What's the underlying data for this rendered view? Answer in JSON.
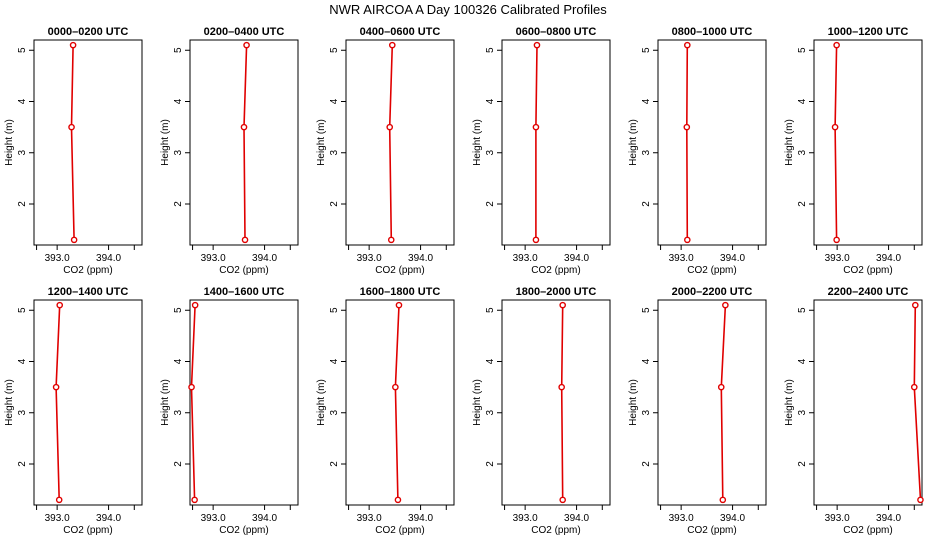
{
  "page": {
    "title": "NWR AIRCOA A  Day 100326  Calibrated Profiles"
  },
  "chart_data": [
    {
      "type": "line",
      "title": "0000–0200 UTC",
      "xlabel": "CO2 (ppm)",
      "ylabel": "Height (m)",
      "xlim": [
        392.55,
        394.65
      ],
      "ylim": [
        1.2,
        5.2
      ],
      "xticks": [
        393.0,
        394.0
      ],
      "xtick_labels": [
        "393.0",
        "394.0"
      ],
      "yticks": [
        2,
        3,
        4,
        5
      ],
      "color": "#e00000",
      "series": [
        {
          "x": [
            393.33,
            393.28,
            393.31
          ],
          "y": [
            1.3,
            3.5,
            5.1
          ]
        }
      ]
    },
    {
      "type": "line",
      "title": "0200–0400 UTC",
      "xlabel": "CO2 (ppm)",
      "ylabel": "Height (m)",
      "xlim": [
        392.55,
        394.65
      ],
      "ylim": [
        1.2,
        5.2
      ],
      "xticks": [
        393.0,
        394.0
      ],
      "xtick_labels": [
        "393.0",
        "394.0"
      ],
      "yticks": [
        2,
        3,
        4,
        5
      ],
      "color": "#e00000",
      "series": [
        {
          "x": [
            393.62,
            393.6,
            393.65
          ],
          "y": [
            1.3,
            3.5,
            5.1
          ]
        }
      ]
    },
    {
      "type": "line",
      "title": "0400–0600 UTC",
      "xlabel": "CO2 (ppm)",
      "ylabel": "Height (m)",
      "xlim": [
        392.55,
        394.65
      ],
      "ylim": [
        1.2,
        5.2
      ],
      "xticks": [
        393.0,
        394.0
      ],
      "xtick_labels": [
        "393.0",
        "394.0"
      ],
      "yticks": [
        2,
        3,
        4,
        5
      ],
      "color": "#e00000",
      "series": [
        {
          "x": [
            393.43,
            393.4,
            393.45
          ],
          "y": [
            1.3,
            3.5,
            5.1
          ]
        }
      ]
    },
    {
      "type": "line",
      "title": "0600–0800 UTC",
      "xlabel": "CO2 (ppm)",
      "ylabel": "Height (m)",
      "xlim": [
        392.55,
        394.65
      ],
      "ylim": [
        1.2,
        5.2
      ],
      "xticks": [
        393.0,
        394.0
      ],
      "xtick_labels": [
        "393.0",
        "394.0"
      ],
      "yticks": [
        2,
        3,
        4,
        5
      ],
      "color": "#e00000",
      "series": [
        {
          "x": [
            393.21,
            393.21,
            393.23
          ],
          "y": [
            1.3,
            3.5,
            5.1
          ]
        }
      ]
    },
    {
      "type": "line",
      "title": "0800–1000 UTC",
      "xlabel": "CO2 (ppm)",
      "ylabel": "Height (m)",
      "xlim": [
        392.55,
        394.65
      ],
      "ylim": [
        1.2,
        5.2
      ],
      "xticks": [
        393.0,
        394.0
      ],
      "xtick_labels": [
        "393.0",
        "394.0"
      ],
      "yticks": [
        2,
        3,
        4,
        5
      ],
      "color": "#e00000",
      "series": [
        {
          "x": [
            393.12,
            393.11,
            393.12
          ],
          "y": [
            1.3,
            3.5,
            5.1
          ]
        }
      ]
    },
    {
      "type": "line",
      "title": "1000–1200 UTC",
      "xlabel": "CO2 (ppm)",
      "ylabel": "Height (m)",
      "xlim": [
        392.55,
        394.65
      ],
      "ylim": [
        1.2,
        5.2
      ],
      "xticks": [
        393.0,
        394.0
      ],
      "xtick_labels": [
        "393.0",
        "394.0"
      ],
      "yticks": [
        2,
        3,
        4,
        5
      ],
      "color": "#e00000",
      "series": [
        {
          "x": [
            392.99,
            392.96,
            392.99
          ],
          "y": [
            1.3,
            3.5,
            5.1
          ]
        }
      ]
    },
    {
      "type": "line",
      "title": "1200–1400 UTC",
      "xlabel": "CO2 (ppm)",
      "ylabel": "Height (m)",
      "xlim": [
        392.55,
        394.65
      ],
      "ylim": [
        1.2,
        5.2
      ],
      "xticks": [
        393.0,
        394.0
      ],
      "xtick_labels": [
        "393.0",
        "394.0"
      ],
      "yticks": [
        2,
        3,
        4,
        5
      ],
      "color": "#e00000",
      "series": [
        {
          "x": [
            393.04,
            392.98,
            393.05
          ],
          "y": [
            1.3,
            3.5,
            5.1
          ]
        }
      ]
    },
    {
      "type": "line",
      "title": "1400–1600 UTC",
      "xlabel": "CO2 (ppm)",
      "ylabel": "Height (m)",
      "xlim": [
        392.55,
        394.65
      ],
      "ylim": [
        1.2,
        5.2
      ],
      "xticks": [
        393.0,
        394.0
      ],
      "xtick_labels": [
        "393.0",
        "394.0"
      ],
      "yticks": [
        2,
        3,
        4,
        5
      ],
      "color": "#e00000",
      "series": [
        {
          "x": [
            392.64,
            392.58,
            392.65
          ],
          "y": [
            1.3,
            3.5,
            5.1
          ]
        }
      ]
    },
    {
      "type": "line",
      "title": "1600–1800 UTC",
      "xlabel": "CO2 (ppm)",
      "ylabel": "Height (m)",
      "xlim": [
        392.55,
        394.65
      ],
      "ylim": [
        1.2,
        5.2
      ],
      "xticks": [
        393.0,
        394.0
      ],
      "xtick_labels": [
        "393.0",
        "394.0"
      ],
      "yticks": [
        2,
        3,
        4,
        5
      ],
      "color": "#e00000",
      "series": [
        {
          "x": [
            393.56,
            393.51,
            393.58
          ],
          "y": [
            1.3,
            3.5,
            5.1
          ]
        }
      ]
    },
    {
      "type": "line",
      "title": "1800–2000 UTC",
      "xlabel": "CO2 (ppm)",
      "ylabel": "Height (m)",
      "xlim": [
        392.55,
        394.65
      ],
      "ylim": [
        1.2,
        5.2
      ],
      "xticks": [
        393.0,
        394.0
      ],
      "xtick_labels": [
        "393.0",
        "394.0"
      ],
      "yticks": [
        2,
        3,
        4,
        5
      ],
      "color": "#e00000",
      "series": [
        {
          "x": [
            393.73,
            393.71,
            393.73
          ],
          "y": [
            1.3,
            3.5,
            5.1
          ]
        }
      ]
    },
    {
      "type": "line",
      "title": "2000–2200 UTC",
      "xlabel": "CO2 (ppm)",
      "ylabel": "Height (m)",
      "xlim": [
        392.55,
        394.65
      ],
      "ylim": [
        1.2,
        5.2
      ],
      "xticks": [
        393.0,
        394.0
      ],
      "xtick_labels": [
        "393.0",
        "394.0"
      ],
      "yticks": [
        2,
        3,
        4,
        5
      ],
      "color": "#e00000",
      "series": [
        {
          "x": [
            393.81,
            393.78,
            393.86
          ],
          "y": [
            1.3,
            3.5,
            5.1
          ]
        }
      ]
    },
    {
      "type": "line",
      "title": "2200–2400 UTC",
      "xlabel": "CO2 (ppm)",
      "ylabel": "Height (m)",
      "xlim": [
        392.55,
        394.65
      ],
      "ylim": [
        1.2,
        5.2
      ],
      "xticks": [
        393.0,
        394.0
      ],
      "xtick_labels": [
        "393.0",
        "394.0"
      ],
      "yticks": [
        2,
        3,
        4,
        5
      ],
      "color": "#e00000",
      "series": [
        {
          "x": [
            394.62,
            394.5,
            394.52
          ],
          "y": [
            1.3,
            3.5,
            5.1
          ]
        }
      ]
    }
  ]
}
